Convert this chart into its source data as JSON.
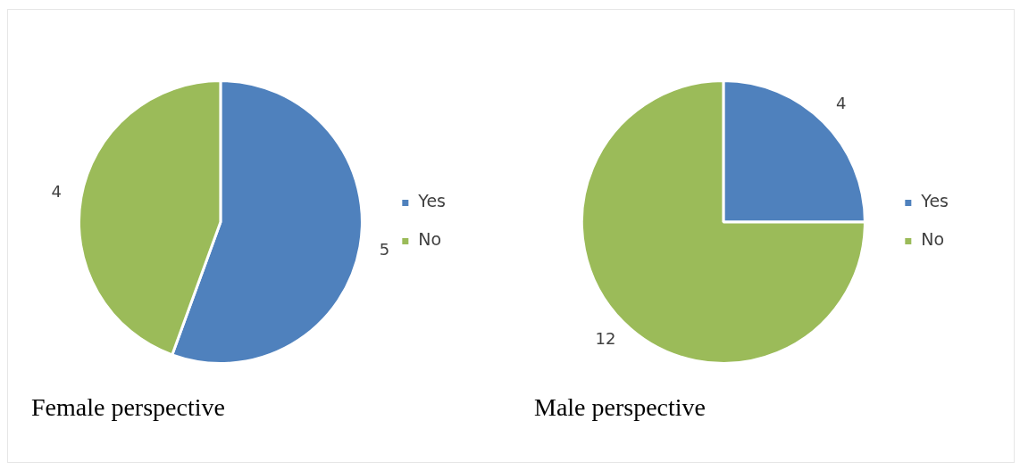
{
  "chart_data": [
    {
      "type": "pie",
      "title": "Female perspective",
      "categories": [
        "Yes",
        "No"
      ],
      "values": [
        5,
        4
      ],
      "colors": [
        "#4f81bd",
        "#9bbb59"
      ],
      "data_labels": true,
      "legend": "right"
    },
    {
      "type": "pie",
      "title": "Male perspective",
      "categories": [
        "Yes",
        "No"
      ],
      "values": [
        4,
        12
      ],
      "colors": [
        "#4f81bd",
        "#9bbb59"
      ],
      "data_labels": true,
      "legend": "right"
    }
  ]
}
